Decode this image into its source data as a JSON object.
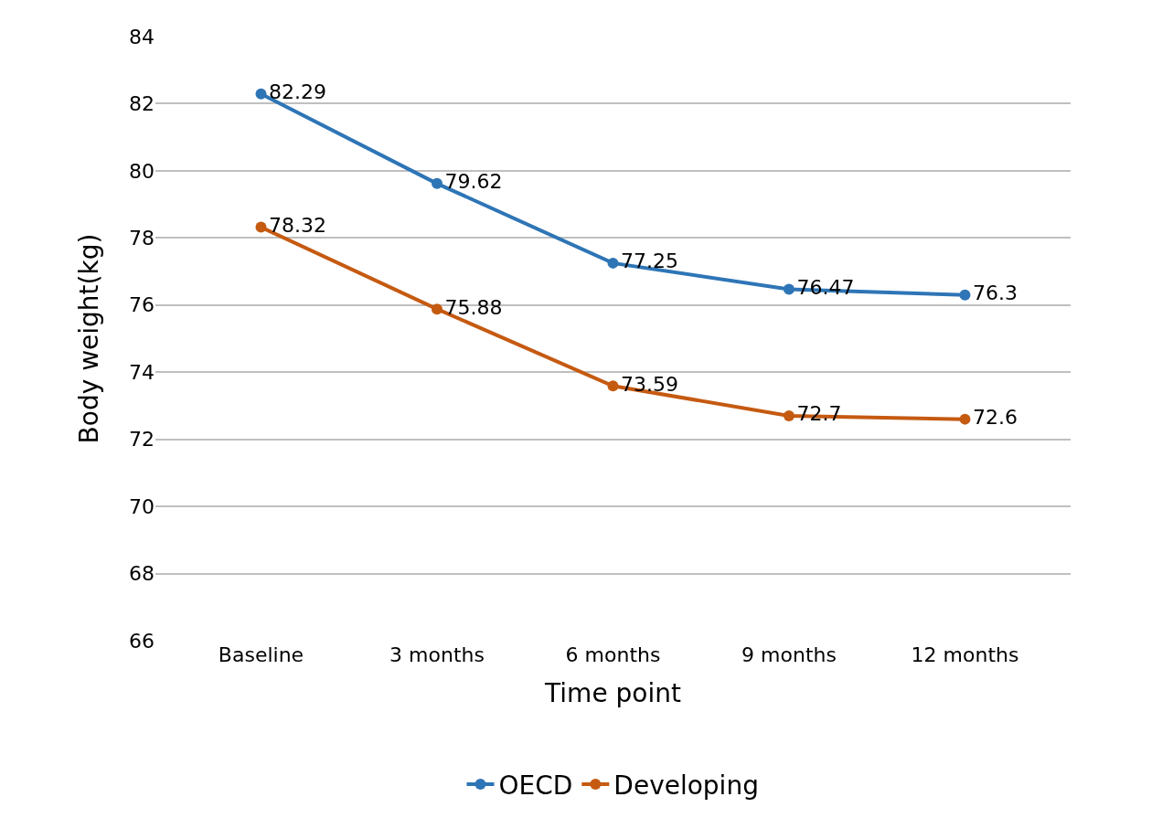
{
  "chart_data": {
    "type": "line",
    "xlabel": "Time point",
    "ylabel": "Body weight(kg)",
    "categories": [
      "Baseline",
      "3 months",
      "6 months",
      "9 months",
      "12 months"
    ],
    "series": [
      {
        "name": "OECD",
        "color": "#2e75b6",
        "values": [
          82.29,
          79.62,
          77.25,
          76.47,
          76.3
        ]
      },
      {
        "name": "Developing",
        "color": "#c55a11",
        "values": [
          78.32,
          75.88,
          73.59,
          72.7,
          72.6
        ]
      }
    ],
    "ylim": [
      66,
      84
    ],
    "yticks": [
      66,
      68,
      70,
      72,
      74,
      76,
      78,
      80,
      82,
      84
    ],
    "grid": "y",
    "legend": "bottom",
    "marker": "circle",
    "line_style": "solid",
    "data_labels": true
  }
}
